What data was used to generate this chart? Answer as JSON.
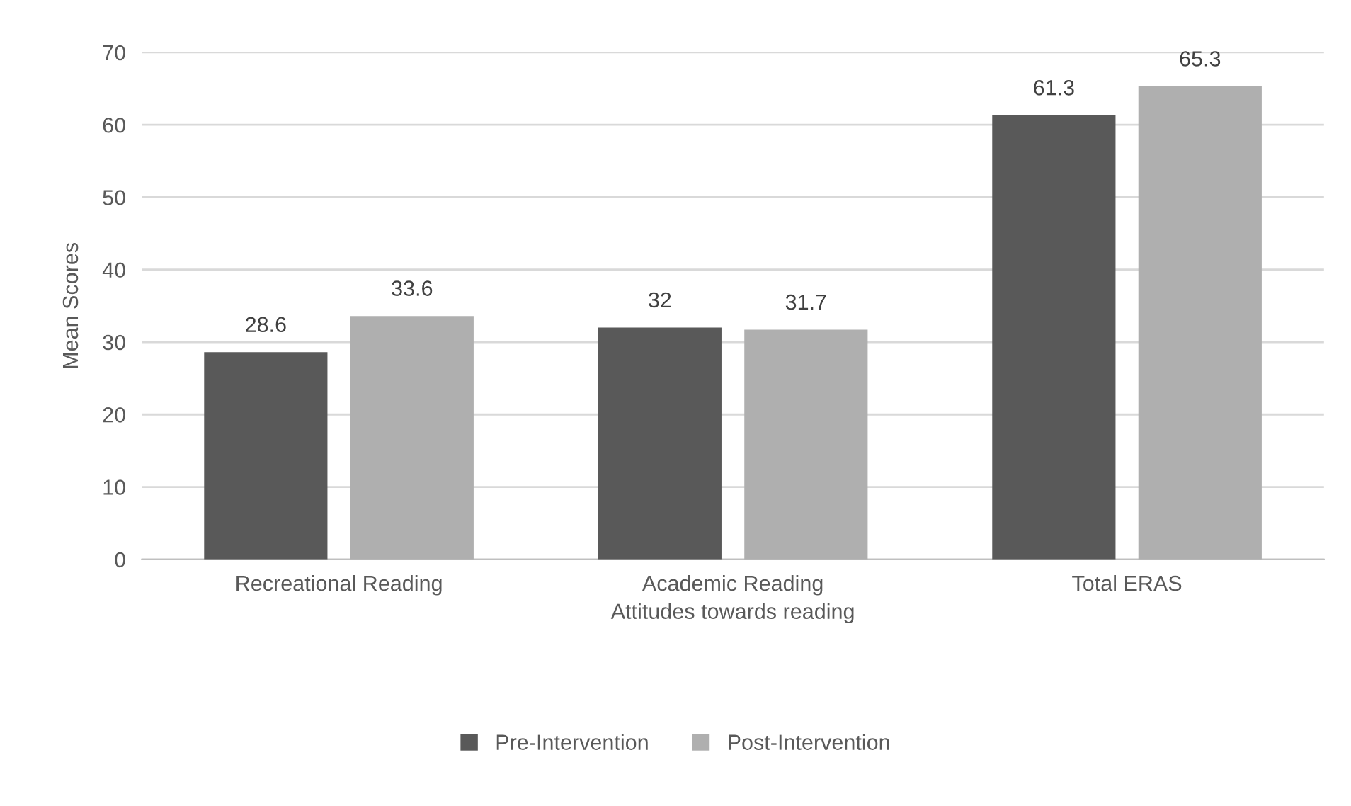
{
  "chart_data": {
    "type": "bar",
    "xlabel": "Attitudes towards reading",
    "ylabel": "Mean Scores",
    "categories": [
      "Recreational Reading",
      "Academic Reading",
      "Total ERAS"
    ],
    "series": [
      {
        "name": "Pre-Intervention",
        "color": "#595959",
        "values": [
          28.6,
          32,
          61.3
        ]
      },
      {
        "name": "Post-Intervention",
        "color": "#afafaf",
        "values": [
          33.6,
          31.7,
          65.3
        ]
      }
    ],
    "ylim": [
      0,
      70
    ],
    "yticks": [
      0,
      10,
      20,
      30,
      40,
      50,
      60,
      70
    ],
    "grid": "y",
    "legend": "bottom",
    "data_labels": true
  }
}
